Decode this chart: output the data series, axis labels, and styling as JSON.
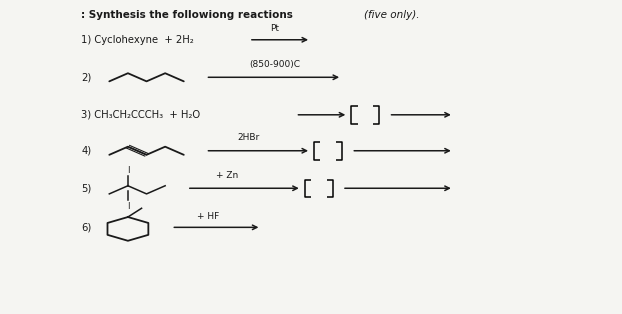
{
  "background": "#f5f5f2",
  "text_color": "#1a1a1a",
  "arrow_color": "#1a1a1a",
  "title_bold": ": Synthesis the followiong reactions ",
  "title_italic": "(five only).",
  "r1_text": "1) Cyclohexyne  + 2H₂",
  "r1_above": "Pt",
  "r2_number": "2)",
  "r2_above": "(850-900)C",
  "r3_text": "3) CH₃CH₂CCCH₃  + H₂O",
  "r4_number": "4)",
  "r4_above": "2HBr",
  "r5_number": "5)",
  "r5_above": "+ Zn",
  "r6_number": "6)",
  "r6_above": "+ HF",
  "ylim": [
    0,
    10
  ],
  "xlim": [
    0,
    10
  ]
}
